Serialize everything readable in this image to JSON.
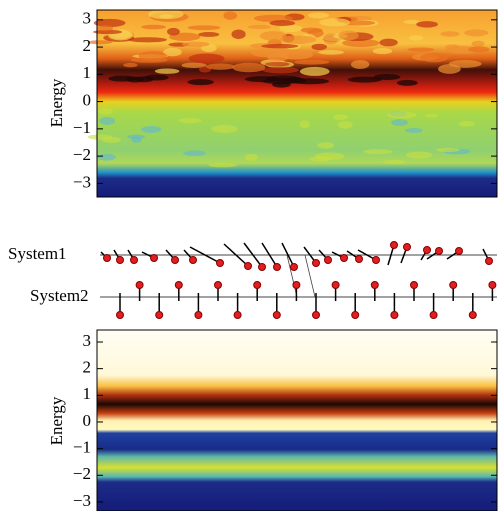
{
  "chart_data": [
    {
      "type": "heatmap",
      "ylabel": "Energy",
      "ylim": [
        -3.5,
        3.36
      ],
      "yticks": [
        {
          "value": -3,
          "label": "−3"
        },
        {
          "value": -2,
          "label": "−2"
        },
        {
          "value": -1,
          "label": "−1"
        },
        0,
        1,
        2,
        3
      ]
    },
    {
      "type": "heatmap",
      "ylabel": "Energy",
      "ylim": [
        -3.34,
        3.45
      ],
      "yticks": [
        {
          "value": -3,
          "label": "−3"
        },
        {
          "value": -2,
          "label": "−2"
        },
        {
          "value": -1,
          "label": "−1"
        },
        0,
        1,
        2,
        3
      ]
    }
  ],
  "diagram": {
    "labels": [
      "System1",
      "System2"
    ]
  }
}
